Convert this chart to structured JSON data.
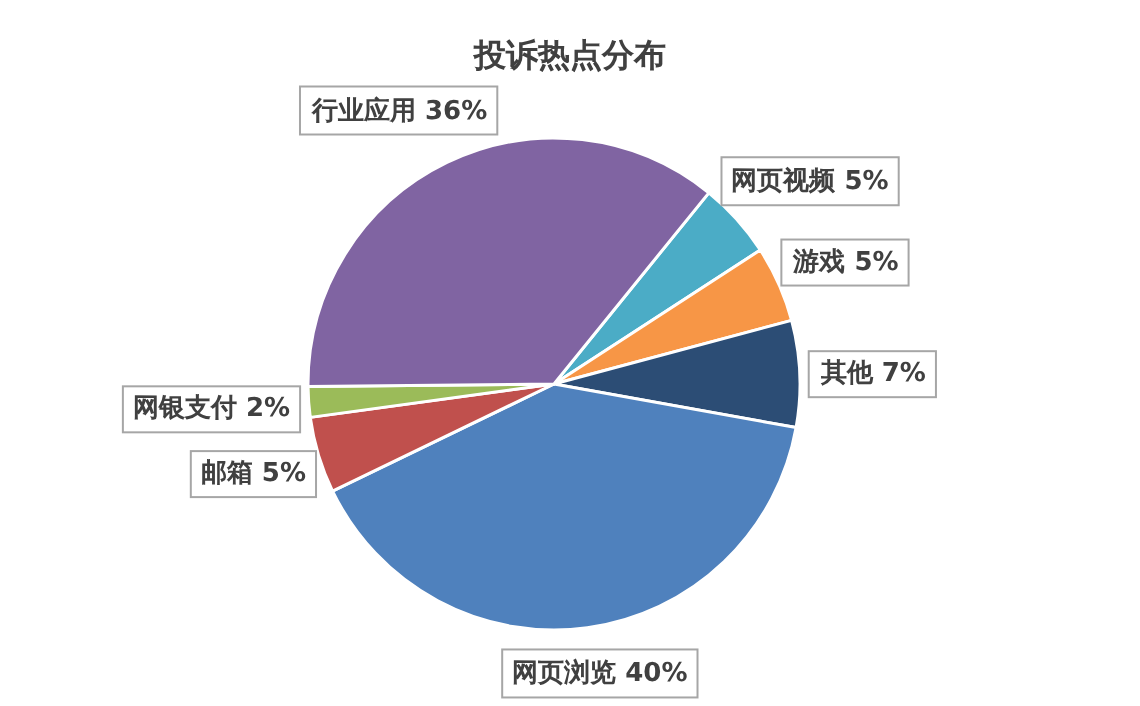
{
  "chart_data": {
    "type": "pie",
    "title": "投诉热点分布",
    "categories": [
      "网页视频",
      "游戏",
      "其他",
      "网页浏览",
      "邮箱",
      "网银支付",
      "行业应用"
    ],
    "values": [
      5,
      5,
      7,
      40,
      5,
      2,
      36
    ],
    "value_labels": [
      "5%",
      "5%",
      "7%",
      "40%",
      "5%",
      "2%",
      "36%"
    ],
    "colors": [
      "#4bacc6",
      "#f79646",
      "#2c4d75",
      "#4f81bd",
      "#c0504d",
      "#9bbb59",
      "#8064a2"
    ]
  }
}
